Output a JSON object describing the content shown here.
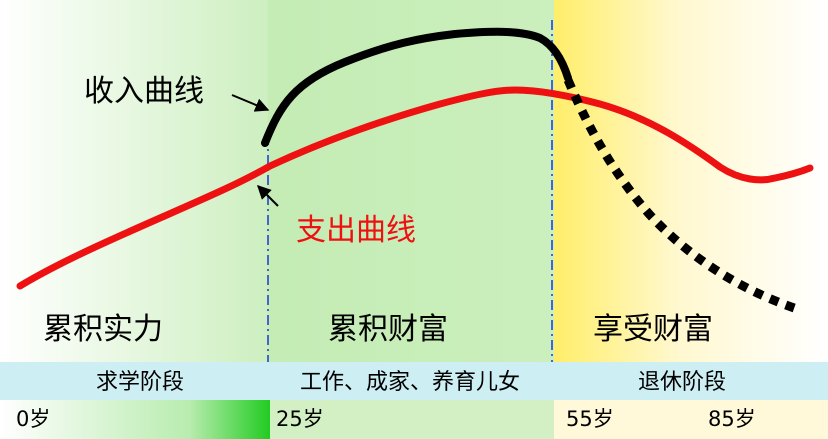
{
  "curves": {
    "income": {
      "label": "收入曲线",
      "color": "#000000"
    },
    "expense": {
      "label": "支出曲线",
      "color": "#ee1111"
    }
  },
  "phases": [
    {
      "title": "累积实力",
      "subtitle": "求学阶段"
    },
    {
      "title": "累积财富",
      "subtitle": "工作、成家、养育儿女"
    },
    {
      "title": "享受财富",
      "subtitle": "退休阶段"
    }
  ],
  "ages": [
    "0岁",
    "25岁",
    "55岁",
    "85岁"
  ],
  "colors": {
    "phase1_bg": "#e4f6dc",
    "phase2_bg": "#d2f0c4",
    "phase3_bg": "#fff4b8",
    "band_bg": "#cdeef3",
    "divider": "#4466cc"
  }
}
